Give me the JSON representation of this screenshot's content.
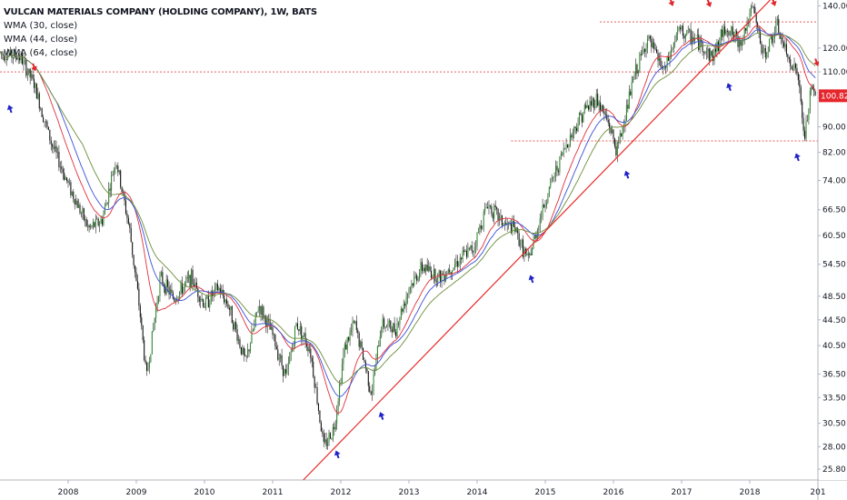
{
  "header": {
    "title": "VULCAN MATERIALS COMPANY (HOLDING COMPANY), 1W, BATS",
    "indicators": [
      "WMA (30, close)",
      "WMA (44, close)",
      "WMA (64, close)"
    ]
  },
  "colors": {
    "up_candle": "#2e8b2e",
    "down_candle": "#111111",
    "wma30": "#e0303a",
    "wma44": "#3a4fd6",
    "wma64": "#6c8e3a",
    "trendline": "#e82b2b",
    "hline": "#e66060",
    "price_tag": "#e5262c",
    "arrow_up": "#1f22c7",
    "arrow_down": "#e0262c"
  },
  "chart_data": {
    "type": "candlestick",
    "scale": "log",
    "ylim": [
      24.8,
      143
    ],
    "xlim": [
      2007.0,
      2019.0
    ],
    "y_ticks": [
      "140.00",
      "120.00",
      "110.00",
      "100.00",
      "90.00",
      "82.00",
      "74.00",
      "66.50",
      "60.50",
      "54.50",
      "48.50",
      "44.50",
      "40.50",
      "36.50",
      "33.50",
      "30.50",
      "28.00",
      "25.80"
    ],
    "x_ticks": [
      "2008",
      "2009",
      "2010",
      "2011",
      "2012",
      "2013",
      "2014",
      "2015",
      "2016",
      "2017",
      "2018",
      "201"
    ],
    "last_price": "100.82",
    "price_path": [
      [
        2007.0,
        118
      ],
      [
        2007.3,
        116
      ],
      [
        2007.5,
        105
      ],
      [
        2007.75,
        85
      ],
      [
        2008.0,
        73
      ],
      [
        2008.3,
        62
      ],
      [
        2008.5,
        64
      ],
      [
        2008.7,
        80
      ],
      [
        2008.9,
        62
      ],
      [
        2009.05,
        46
      ],
      [
        2009.15,
        36
      ],
      [
        2009.35,
        52
      ],
      [
        2009.55,
        48
      ],
      [
        2009.8,
        52
      ],
      [
        2010.0,
        47
      ],
      [
        2010.2,
        50
      ],
      [
        2010.35,
        47
      ],
      [
        2010.6,
        38
      ],
      [
        2010.8,
        47
      ],
      [
        2011.0,
        42
      ],
      [
        2011.2,
        36
      ],
      [
        2011.35,
        44
      ],
      [
        2011.55,
        40
      ],
      [
        2011.75,
        28
      ],
      [
        2011.9,
        30
      ],
      [
        2012.05,
        40
      ],
      [
        2012.2,
        44
      ],
      [
        2012.35,
        38
      ],
      [
        2012.45,
        34
      ],
      [
        2012.6,
        44
      ],
      [
        2012.8,
        43
      ],
      [
        2013.0,
        50
      ],
      [
        2013.2,
        54
      ],
      [
        2013.45,
        52
      ],
      [
        2013.7,
        55
      ],
      [
        2013.95,
        58
      ],
      [
        2014.15,
        68
      ],
      [
        2014.4,
        63
      ],
      [
        2014.55,
        62
      ],
      [
        2014.75,
        55
      ],
      [
        2014.95,
        66
      ],
      [
        2015.1,
        74
      ],
      [
        2015.3,
        84
      ],
      [
        2015.55,
        95
      ],
      [
        2015.75,
        100
      ],
      [
        2015.95,
        90
      ],
      [
        2016.05,
        82
      ],
      [
        2016.3,
        108
      ],
      [
        2016.5,
        124
      ],
      [
        2016.75,
        110
      ],
      [
        2016.95,
        128
      ],
      [
        2017.2,
        124
      ],
      [
        2017.45,
        116
      ],
      [
        2017.65,
        130
      ],
      [
        2017.85,
        122
      ],
      [
        2018.05,
        139
      ],
      [
        2018.2,
        116
      ],
      [
        2018.4,
        130
      ],
      [
        2018.55,
        116
      ],
      [
        2018.7,
        110
      ],
      [
        2018.8,
        86
      ],
      [
        2018.9,
        103
      ],
      [
        2018.97,
        100.82
      ]
    ],
    "trendline": [
      [
        2011.45,
        24.8
      ],
      [
        2018.3,
        143
      ]
    ],
    "horizontal_levels": [
      {
        "price": 110,
        "from": 2007.0,
        "to": 2019.0
      },
      {
        "price": 132,
        "from": 2015.8,
        "to": 2019.0
      },
      {
        "price": 85.5,
        "from": 2014.5,
        "to": 2019.0
      }
    ],
    "up_arrows": [
      [
        2007.15,
        96
      ],
      [
        2011.95,
        27.2
      ],
      [
        2012.6,
        31.3
      ],
      [
        2014.8,
        51.6
      ],
      [
        2016.2,
        75.5
      ],
      [
        2017.7,
        104
      ],
      [
        2018.7,
        80.5
      ]
    ],
    "down_arrows": [
      [
        2007.5,
        112
      ],
      [
        2016.85,
        142
      ],
      [
        2017.4,
        141.5
      ],
      [
        2018.35,
        142
      ],
      [
        2018.98,
        114
      ]
    ]
  }
}
